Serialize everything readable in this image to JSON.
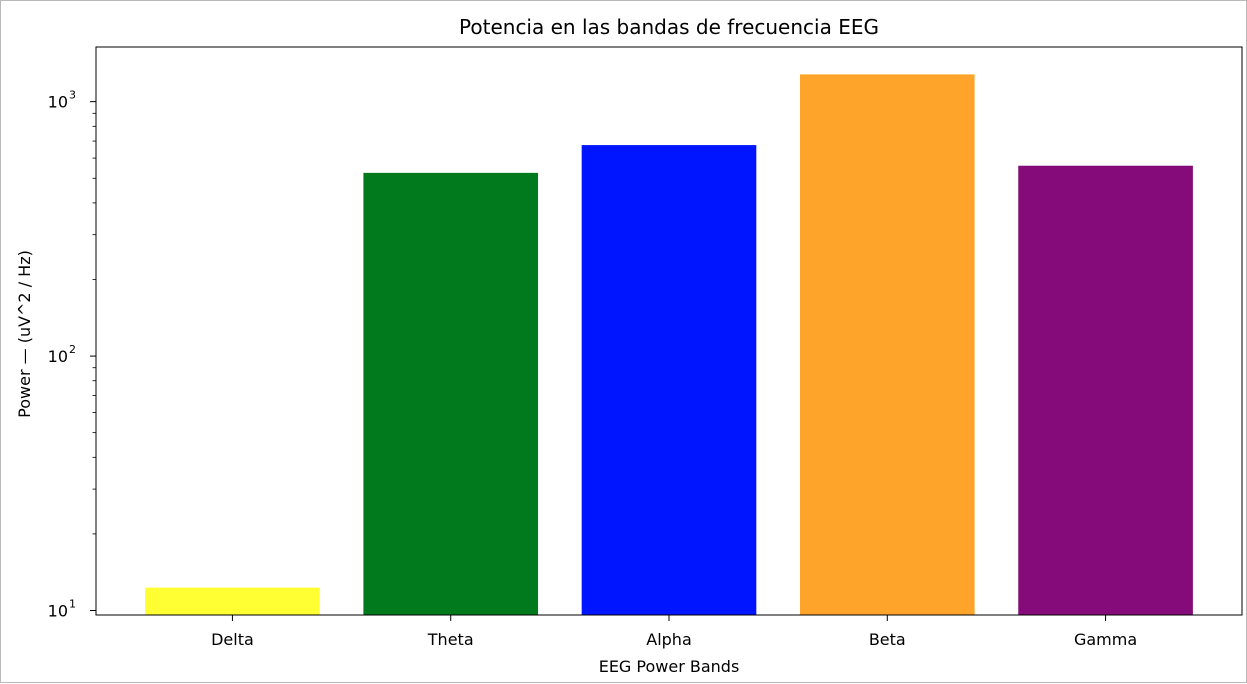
{
  "chart_data": {
    "type": "bar",
    "title": "Potencia en las bandas de frecuencia EEG",
    "xlabel": "EEG Power Bands",
    "ylabel": "Power — (uV^2 / Hz)",
    "yscale": "log",
    "ylim": [
      9.6,
      1640
    ],
    "yticks": [
      {
        "value": 10,
        "base": "10",
        "exp": "1"
      },
      {
        "value": 100,
        "base": "10",
        "exp": "2"
      },
      {
        "value": 1000,
        "base": "10",
        "exp": "3"
      }
    ],
    "categories": [
      "Delta",
      "Theta",
      "Alpha",
      "Beta",
      "Gamma"
    ],
    "values": [
      12.3,
      525,
      675,
      1280,
      560
    ],
    "colors": [
      "#ffff33",
      "#007a1c",
      "#0015ff",
      "#ffa42a",
      "#850b7a"
    ],
    "grid": false,
    "legend": "none"
  }
}
